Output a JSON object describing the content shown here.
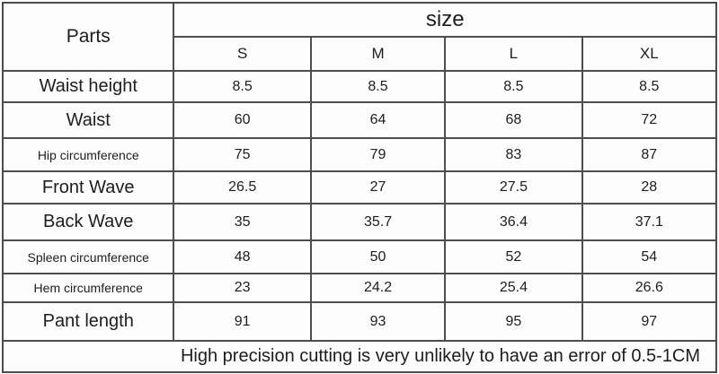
{
  "table": {
    "parts_header": "Parts",
    "size_header": "size",
    "size_columns": [
      "S",
      "M",
      "L",
      "XL"
    ],
    "rows": [
      {
        "label": "Waist height",
        "values": [
          "8.5",
          "8.5",
          "8.5",
          "8.5"
        ]
      },
      {
        "label": "Waist",
        "values": [
          "60",
          "64",
          "68",
          "72"
        ]
      },
      {
        "label": "Hip circumference",
        "values": [
          "75",
          "79",
          "83",
          "87"
        ]
      },
      {
        "label": "Front Wave",
        "values": [
          "26.5",
          "27",
          "27.5",
          "28"
        ]
      },
      {
        "label": "Back Wave",
        "values": [
          "35",
          "35.7",
          "36.4",
          "37.1"
        ]
      },
      {
        "label": "Spleen circumference",
        "values": [
          "48",
          "50",
          "52",
          "54"
        ]
      },
      {
        "label": "Hem circumference",
        "values": [
          "23",
          "24.2",
          "25.4",
          "26.6"
        ]
      },
      {
        "label": "Pant length",
        "values": [
          "91",
          "93",
          "95",
          "97"
        ]
      }
    ],
    "footer_note": "High precision cutting is very unlikely to have an error of 0.5-1CM"
  },
  "colors": {
    "border": "#4d4d4d",
    "text": "#1d1d1d",
    "background": "#fdfdfd"
  },
  "chart_data": {
    "type": "table",
    "title": "size",
    "columns": [
      "Parts",
      "S",
      "M",
      "L",
      "XL"
    ],
    "rows": [
      [
        "Waist height",
        8.5,
        8.5,
        8.5,
        8.5
      ],
      [
        "Waist",
        60,
        64,
        68,
        72
      ],
      [
        "Hip circumference",
        75,
        79,
        83,
        87
      ],
      [
        "Front Wave",
        26.5,
        27,
        27.5,
        28
      ],
      [
        "Back Wave",
        35,
        35.7,
        36.4,
        37.1
      ],
      [
        "Spleen circumference",
        48,
        50,
        52,
        54
      ],
      [
        "Hem circumference",
        23,
        24.2,
        25.4,
        26.6
      ],
      [
        "Pant length",
        91,
        93,
        95,
        97
      ]
    ],
    "note": "High precision cutting is very unlikely to have an error of 0.5-1CM"
  }
}
